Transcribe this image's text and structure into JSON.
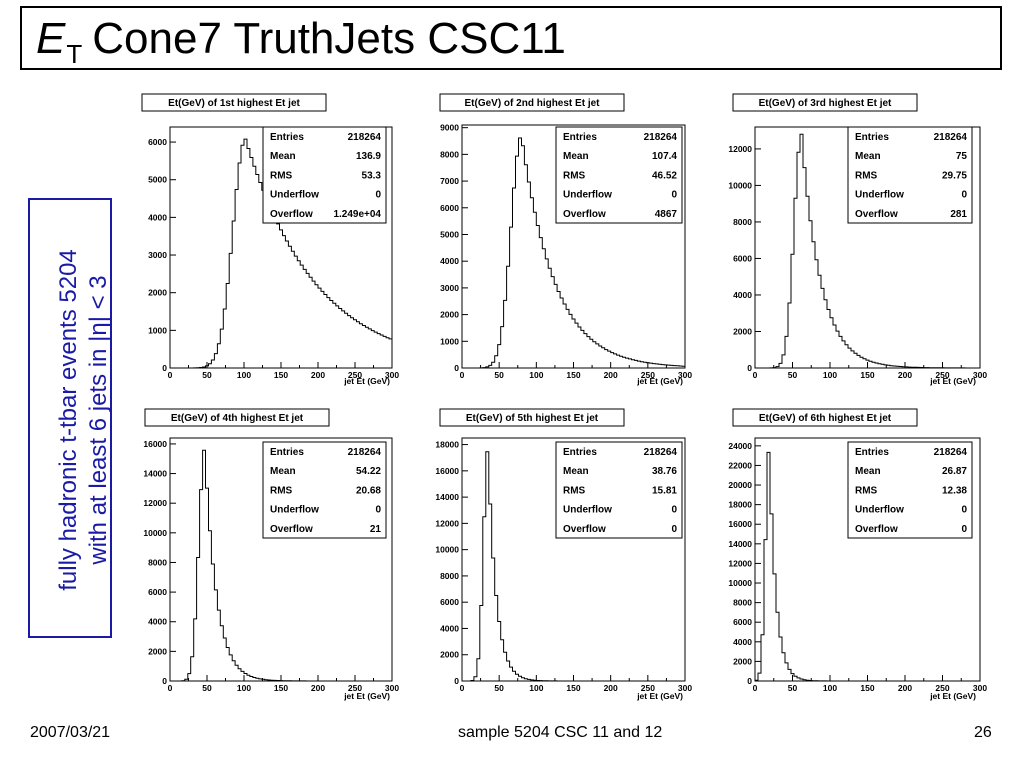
{
  "slide": {
    "title_symbol": "E",
    "title_subscript": "T",
    "title_rest": "Cone7 TruthJets CSC11",
    "side_line1": "fully hadronic t-tbar events 5204",
    "side_line2": "with at least 6 jets in |η| < 3",
    "footer_date": "2007/03/21",
    "footer_sample": "sample 5204 CSC 11 and 12",
    "footer_page": "26"
  },
  "chart_data": [
    {
      "type": "histogram",
      "title": "Et(GeV) of 1st highest Et jet",
      "xlabel": "jet Et (GeV)",
      "xlim": [
        0,
        300
      ],
      "ylim": [
        0,
        6400
      ],
      "xticks": [
        "0",
        "50",
        "100",
        "150",
        "200",
        "250",
        "300"
      ],
      "yticks": [
        {
          "v": 0,
          "t": "0"
        },
        {
          "v": 1000,
          "t": "1000"
        },
        {
          "v": 2000,
          "t": "2000"
        },
        {
          "v": 3000,
          "t": "3000"
        },
        {
          "v": 4000,
          "t": "4000"
        },
        {
          "v": 5000,
          "t": "5000"
        },
        {
          "v": 6000,
          "t": "6000"
        }
      ],
      "stats": [
        {
          "label": "Entries",
          "value": "218264"
        },
        {
          "label": "Mean",
          "value": "136.9"
        },
        {
          "label": "RMS",
          "value": "53.3"
        },
        {
          "label": "Underflow",
          "value": "0"
        },
        {
          "label": "Overflow",
          "value": "1.249e+04"
        }
      ],
      "shape": {
        "peak_x": 102,
        "peak_y": 6080,
        "left_width": 17,
        "left_shape": "gauss",
        "right_width": 95,
        "right_shape": "exp",
        "right_tau_scale": 1.0
      }
    },
    {
      "type": "histogram",
      "title": "Et(GeV) of 2nd highest Et jet",
      "xlabel": "jet Et (GeV)",
      "xlim": [
        0,
        300
      ],
      "ylim": [
        0,
        9100
      ],
      "xticks": [
        "0",
        "50",
        "100",
        "150",
        "200",
        "250",
        "300"
      ],
      "yticks": [
        {
          "v": 0,
          "t": "0"
        },
        {
          "v": 1000,
          "t": "1000"
        },
        {
          "v": 2000,
          "t": "2000"
        },
        {
          "v": 3000,
          "t": "3000"
        },
        {
          "v": 4000,
          "t": "4000"
        },
        {
          "v": 5000,
          "t": "5000"
        },
        {
          "v": 6000,
          "t": "6000"
        },
        {
          "v": 7000,
          "t": "7000"
        },
        {
          "v": 8000,
          "t": "8000"
        },
        {
          "v": 9000,
          "t": "9000"
        }
      ],
      "stats": [
        {
          "label": "Entries",
          "value": "218264"
        },
        {
          "label": "Mean",
          "value": "107.4"
        },
        {
          "label": "RMS",
          "value": "46.52"
        },
        {
          "label": "Underflow",
          "value": "0"
        },
        {
          "label": "Overflow",
          "value": "4867"
        }
      ],
      "shape": {
        "peak_x": 80,
        "peak_y": 8700,
        "left_width": 14,
        "left_shape": "gauss",
        "right_width": 45,
        "right_shape": "exp",
        "right_tau_scale": 1.0
      }
    },
    {
      "type": "histogram",
      "title": "Et(GeV) of 3rd highest Et jet",
      "xlabel": "jet Et (GeV)",
      "xlim": [
        0,
        300
      ],
      "ylim": [
        0,
        13200
      ],
      "xticks": [
        "0",
        "50",
        "100",
        "150",
        "200",
        "250",
        "300"
      ],
      "yticks": [
        {
          "v": 0,
          "t": "0"
        },
        {
          "v": 2000,
          "t": "2000"
        },
        {
          "v": 4000,
          "t": "4000"
        },
        {
          "v": 6000,
          "t": "6000"
        },
        {
          "v": 8000,
          "t": "8000"
        },
        {
          "v": 10000,
          "t": "10000"
        },
        {
          "v": 12000,
          "t": "12000"
        }
      ],
      "stats": [
        {
          "label": "Entries",
          "value": "218264"
        },
        {
          "label": "Mean",
          "value": "75"
        },
        {
          "label": "RMS",
          "value": "29.75"
        },
        {
          "label": "Underflow",
          "value": "0"
        },
        {
          "label": "Overflow",
          "value": "281"
        }
      ],
      "shape": {
        "peak_x": 62,
        "peak_y": 12800,
        "left_width": 10,
        "left_shape": "gauss",
        "right_width": 26,
        "right_shape": "exp",
        "right_tau_scale": 1.0
      }
    },
    {
      "type": "histogram",
      "title": "Et(GeV) of 4th highest Et jet",
      "xlabel": "jet Et (GeV)",
      "xlim": [
        0,
        300
      ],
      "ylim": [
        0,
        16400
      ],
      "xticks": [
        "0",
        "50",
        "100",
        "150",
        "200",
        "250",
        "300"
      ],
      "yticks": [
        {
          "v": 0,
          "t": "0"
        },
        {
          "v": 2000,
          "t": "2000"
        },
        {
          "v": 4000,
          "t": "4000"
        },
        {
          "v": 6000,
          "t": "6000"
        },
        {
          "v": 8000,
          "t": "8000"
        },
        {
          "v": 10000,
          "t": "10000"
        },
        {
          "v": 12000,
          "t": "12000"
        },
        {
          "v": 14000,
          "t": "14000"
        },
        {
          "v": 16000,
          "t": "16000"
        }
      ],
      "stats": [
        {
          "label": "Entries",
          "value": "218264"
        },
        {
          "label": "Mean",
          "value": "54.22"
        },
        {
          "label": "RMS",
          "value": "20.68"
        },
        {
          "label": "Underflow",
          "value": "0"
        },
        {
          "label": "Overflow",
          "value": "21"
        }
      ],
      "shape": {
        "peak_x": 47,
        "peak_y": 15700,
        "left_width": 8,
        "left_shape": "gauss",
        "right_width": 16,
        "right_shape": "exp",
        "right_tau_scale": 1.0
      }
    },
    {
      "type": "histogram",
      "title": "Et(GeV) of 5th highest Et jet",
      "xlabel": "jet Et (GeV)",
      "xlim": [
        0,
        300
      ],
      "ylim": [
        0,
        18500
      ],
      "xticks": [
        "0",
        "50",
        "100",
        "150",
        "200",
        "250",
        "300"
      ],
      "yticks": [
        {
          "v": 0,
          "t": "0"
        },
        {
          "v": 2000,
          "t": "2000"
        },
        {
          "v": 4000,
          "t": "4000"
        },
        {
          "v": 6000,
          "t": "6000"
        },
        {
          "v": 8000,
          "t": "8000"
        },
        {
          "v": 10000,
          "t": "10000"
        },
        {
          "v": 12000,
          "t": "12000"
        },
        {
          "v": 14000,
          "t": "14000"
        },
        {
          "v": 16000,
          "t": "16000"
        },
        {
          "v": 18000,
          "t": "18000"
        }
      ],
      "stats": [
        {
          "label": "Entries",
          "value": "218264"
        },
        {
          "label": "Mean",
          "value": "38.76"
        },
        {
          "label": "RMS",
          "value": "15.81"
        },
        {
          "label": "Underflow",
          "value": "0"
        },
        {
          "label": "Overflow",
          "value": "0"
        }
      ],
      "shape": {
        "peak_x": 35,
        "peak_y": 17700,
        "left_width": 6,
        "left_shape": "gauss",
        "right_width": 11,
        "right_shape": "exp",
        "right_tau_scale": 1.0
      }
    },
    {
      "type": "histogram",
      "title": "Et(GeV) of 6th highest Et jet",
      "xlabel": "jet Et (GeV)",
      "xlim": [
        0,
        300
      ],
      "ylim": [
        0,
        24800
      ],
      "xticks": [
        "0",
        "50",
        "100",
        "150",
        "200",
        "250",
        "300"
      ],
      "yticks": [
        {
          "v": 0,
          "t": "0"
        },
        {
          "v": 2000,
          "t": "2000"
        },
        {
          "v": 4000,
          "t": "4000"
        },
        {
          "v": 6000,
          "t": "6000"
        },
        {
          "v": 8000,
          "t": "8000"
        },
        {
          "v": 10000,
          "t": "10000"
        },
        {
          "v": 12000,
          "t": "12000"
        },
        {
          "v": 14000,
          "t": "14000"
        },
        {
          "v": 16000,
          "t": "16000"
        },
        {
          "v": 18000,
          "t": "18000"
        },
        {
          "v": 20000,
          "t": "20000"
        },
        {
          "v": 22000,
          "t": "22000"
        },
        {
          "v": 24000,
          "t": "24000"
        }
      ],
      "stats": [
        {
          "label": "Entries",
          "value": "218264"
        },
        {
          "label": "Mean",
          "value": "26.87"
        },
        {
          "label": "RMS",
          "value": "12.38"
        },
        {
          "label": "Underflow",
          "value": "0"
        },
        {
          "label": "Overflow",
          "value": "0"
        }
      ],
      "shape": {
        "peak_x": 19,
        "peak_y": 23800,
        "left_width": 5,
        "left_shape": "gauss",
        "right_width": 9,
        "right_shape": "exp",
        "right_tau_scale": 1.0
      }
    }
  ]
}
